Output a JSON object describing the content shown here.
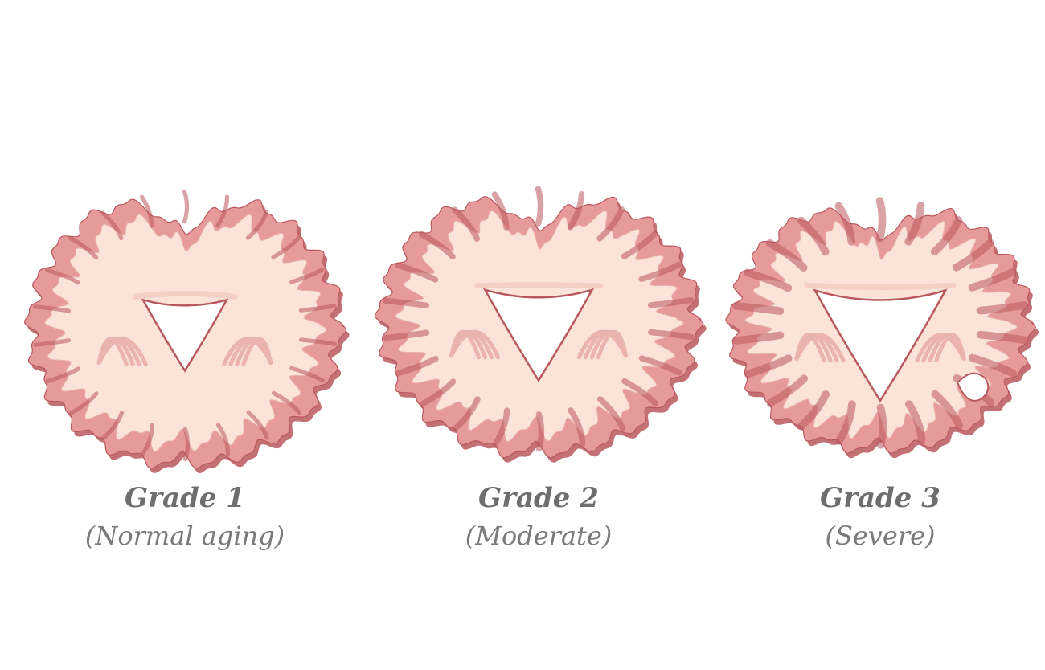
{
  "figure": {
    "panels": [
      {
        "grade": "Grade 1",
        "description": "(Normal aging)",
        "severity_level": 1
      },
      {
        "grade": "Grade 2",
        "description": "(Moderate)",
        "severity_level": 2
      },
      {
        "grade": "Grade 3",
        "description": "(Severe)",
        "severity_level": 3
      }
    ],
    "colors": {
      "cortex": "#e79a9a",
      "cortex_edge": "#b9585d",
      "white_matter": "#fbe3da",
      "ventricle": "#ffffff",
      "nuclei": "#eab3ad",
      "caption_text": "#6e6e6e"
    }
  }
}
